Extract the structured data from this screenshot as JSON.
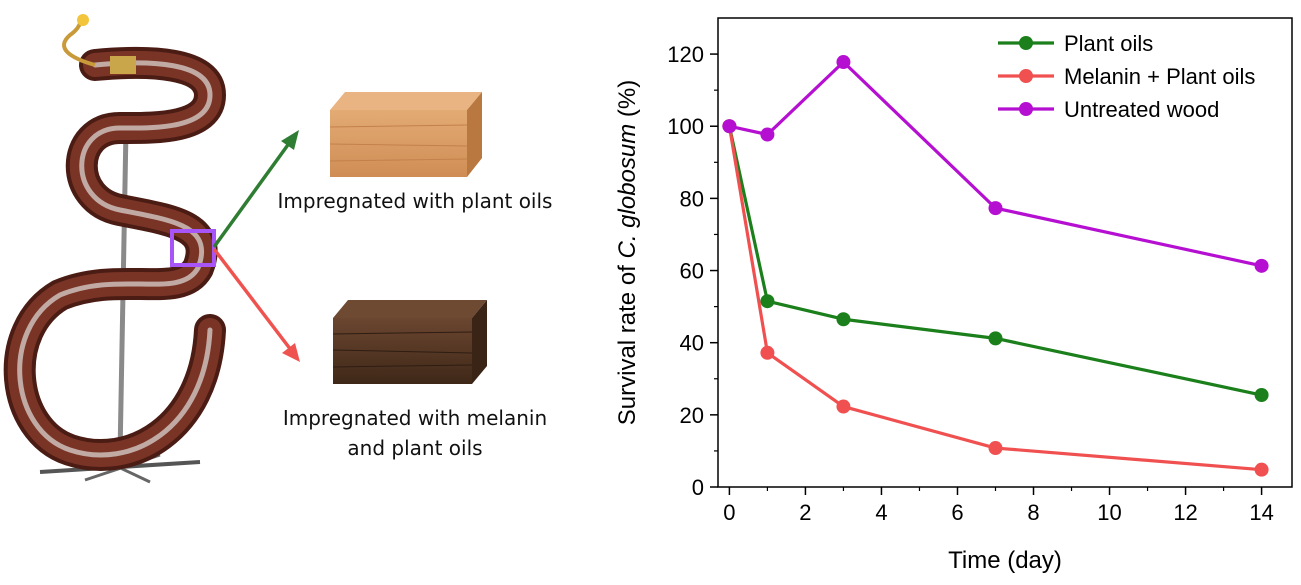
{
  "illustration": {
    "label_top": "Impregnated with plant oils",
    "label_bottom_line1": "Impregnated with melanin",
    "label_bottom_line2": "and plant oils",
    "colors": {
      "arrow_top": "#2e7d32",
      "arrow_bottom": "#ef5350",
      "highlight_box": "#a855f7",
      "wood_light": "#d99a63",
      "wood_dark": "#5a3a26",
      "instrument_body": "#6b2e22"
    }
  },
  "chart_data": {
    "type": "line",
    "title": "",
    "xlabel": "Time (day)",
    "ylabel_prefix": "Survival rate of ",
    "ylabel_species": "C. globosum",
    "ylabel_suffix": " (%)",
    "xlim": [
      -0.3,
      14.8
    ],
    "ylim": [
      0,
      130
    ],
    "xticks": [
      0,
      2,
      4,
      6,
      8,
      10,
      12,
      14
    ],
    "yticks": [
      0,
      20,
      40,
      60,
      80,
      100,
      120
    ],
    "legend_position": "top-right",
    "grid": false,
    "series": [
      {
        "name": "Plant oils",
        "color": "#1b7f1b",
        "x": [
          0,
          1,
          3,
          7,
          14
        ],
        "y": [
          100,
          51.5,
          46.5,
          41.2,
          25.5
        ]
      },
      {
        "name": "Melanin + Plant oils",
        "color": "#f05050",
        "x": [
          0,
          1,
          3,
          7,
          14
        ],
        "y": [
          100,
          37.2,
          22.3,
          10.8,
          4.8
        ]
      },
      {
        "name": "Untreated wood",
        "color": "#b50fd1",
        "x": [
          0,
          1,
          3,
          7,
          14
        ],
        "y": [
          100,
          97.7,
          117.8,
          77.3,
          61.3
        ]
      }
    ]
  }
}
